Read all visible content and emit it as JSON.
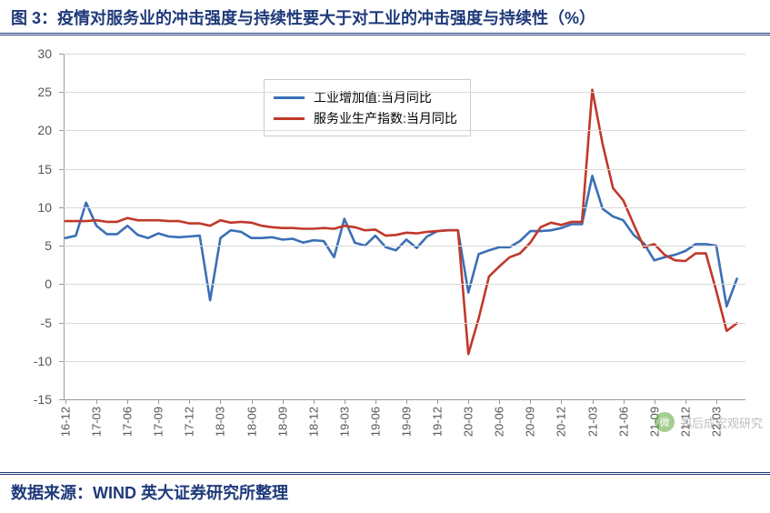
{
  "title": "图 3：疫情对服务业的冲击强度与持续性要大于对工业的冲击强度与持续性（%）",
  "source": "数据来源：WIND  英大证券研究所整理",
  "watermark_text": "郑后成宏观研究",
  "watermark_icon": "微",
  "chart": {
    "type": "line",
    "background_color": "#ffffff",
    "grid_color": "#d9d9d9",
    "axis_color": "#999999",
    "title_color": "#1f3a7a",
    "title_fontsize": 18,
    "label_fontsize": 14,
    "ylim": [
      -15,
      30
    ],
    "ytick_step": 5,
    "yticks": [
      -15,
      -10,
      -5,
      0,
      5,
      10,
      15,
      20,
      25,
      30
    ],
    "line_width": 2.6,
    "legend_position": "top-center",
    "x_labels_visible": [
      "16-12",
      "17-03",
      "17-06",
      "17-09",
      "17-12",
      "18-03",
      "18-06",
      "18-09",
      "18-12",
      "19-03",
      "19-06",
      "19-09",
      "19-12",
      "20-03",
      "20-06",
      "20-09",
      "20-12",
      "21-03",
      "21-06",
      "21-09",
      "21-12",
      "22-03"
    ],
    "x_categories": [
      "16-12",
      "17-01",
      "17-02",
      "17-03",
      "17-04",
      "17-05",
      "17-06",
      "17-07",
      "17-08",
      "17-09",
      "17-10",
      "17-11",
      "17-12",
      "18-01",
      "18-02",
      "18-03",
      "18-04",
      "18-05",
      "18-06",
      "18-07",
      "18-08",
      "18-09",
      "18-10",
      "18-11",
      "18-12",
      "19-01",
      "19-02",
      "19-03",
      "19-04",
      "19-05",
      "19-06",
      "19-07",
      "19-08",
      "19-09",
      "19-10",
      "19-11",
      "19-12",
      "20-01",
      "20-02",
      "20-03",
      "20-04",
      "20-05",
      "20-06",
      "20-07",
      "20-08",
      "20-09",
      "20-10",
      "20-11",
      "20-12",
      "21-01",
      "21-02",
      "21-03",
      "21-04",
      "21-05",
      "21-06",
      "21-07",
      "21-08",
      "21-09",
      "21-10",
      "21-11",
      "21-12",
      "22-01",
      "22-02",
      "22-03",
      "22-04",
      "22-05"
    ],
    "x_tick_rotation": -90,
    "series": [
      {
        "name": "工业增加值:当月同比",
        "color": "#3b6fb6",
        "values": [
          6.0,
          6.3,
          10.6,
          7.6,
          6.5,
          6.5,
          7.6,
          6.4,
          6.0,
          6.6,
          6.2,
          6.1,
          6.2,
          6.3,
          -2.1,
          6.0,
          7.0,
          6.8,
          6.0,
          6.0,
          6.1,
          5.8,
          5.9,
          5.4,
          5.7,
          5.6,
          3.5,
          8.5,
          5.4,
          5.0,
          6.3,
          4.8,
          4.4,
          5.8,
          4.7,
          6.2,
          6.9,
          7.0,
          7.0,
          -1.1,
          3.9,
          4.4,
          4.8,
          4.8,
          5.6,
          6.9,
          6.9,
          7.0,
          7.3,
          7.8,
          7.8,
          14.1,
          9.8,
          8.8,
          8.3,
          6.4,
          5.3,
          3.1,
          3.5,
          3.8,
          4.3,
          5.2,
          5.2,
          5.0,
          -2.9,
          0.7
        ]
      },
      {
        "name": "服务业生产指数:当月同比",
        "color": "#c0392b",
        "values": [
          8.2,
          8.2,
          8.2,
          8.3,
          8.1,
          8.1,
          8.6,
          8.3,
          8.3,
          8.3,
          8.2,
          8.2,
          7.9,
          7.9,
          7.6,
          8.3,
          8.0,
          8.1,
          8.0,
          7.6,
          7.4,
          7.3,
          7.3,
          7.2,
          7.2,
          7.3,
          7.2,
          7.6,
          7.4,
          7.0,
          7.1,
          6.3,
          6.4,
          6.7,
          6.6,
          6.8,
          6.9,
          7.0,
          7.0,
          -9.1,
          -4.5,
          1.0,
          2.3,
          3.5,
          4.0,
          5.4,
          7.4,
          8.0,
          7.7,
          8.1,
          8.1,
          25.3,
          18.2,
          12.5,
          10.9,
          7.8,
          4.8,
          5.2,
          3.8,
          3.1,
          3.0,
          4.0,
          4.0,
          -0.9,
          -6.1,
          -5.1
        ]
      }
    ]
  }
}
